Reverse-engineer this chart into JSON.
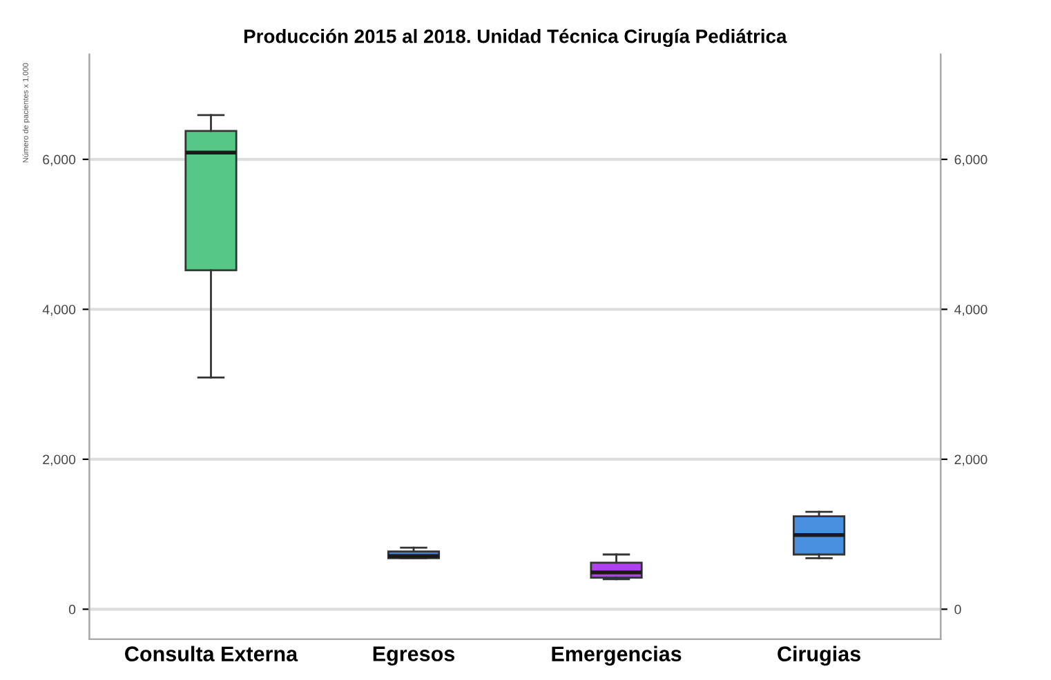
{
  "chart_data": {
    "type": "box",
    "title": "Producción 2015 al 2018. Unidad Técnica Cirugía Pediátrica",
    "ylabel": "Número de pacientes x 1,000",
    "categories": [
      "Consulta Externa",
      "Egresos",
      "Emergencias",
      "Cirugias"
    ],
    "boxes": [
      {
        "low": 3090,
        "q1": 4520,
        "median": 6090,
        "q3": 6380,
        "high": 6590
      },
      {
        "low": 680,
        "q1": 680,
        "median": 710,
        "q3": 770,
        "high": 820
      },
      {
        "low": 400,
        "q1": 420,
        "median": 490,
        "q3": 620,
        "high": 730
      },
      {
        "low": 680,
        "q1": 730,
        "median": 990,
        "q3": 1240,
        "high": 1300
      }
    ],
    "colors": [
      "#57c785",
      "#4a7fd0",
      "#b040f0",
      "#4a90e0"
    ],
    "ylim": [
      -400,
      7400
    ],
    "yticks": [
      {
        "value": 0,
        "label": "0"
      },
      {
        "value": 2000,
        "label": "2,000"
      },
      {
        "value": 4000,
        "label": "4,000"
      },
      {
        "value": 6000,
        "label": "6,000"
      }
    ],
    "y2lim": [
      -400,
      7400
    ],
    "y2ticks": [
      {
        "value": 0,
        "label": "0"
      },
      {
        "value": 2000,
        "label": "2,000"
      },
      {
        "value": 4000,
        "label": "4,000"
      },
      {
        "value": 6000,
        "label": "6,000"
      }
    ],
    "grid": "y"
  }
}
